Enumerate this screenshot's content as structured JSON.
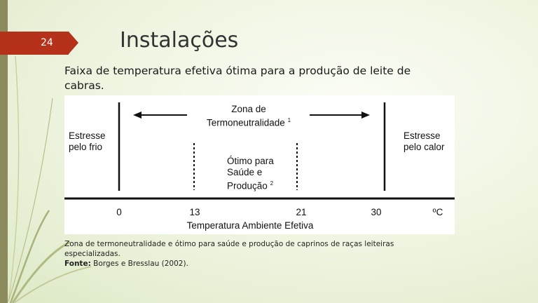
{
  "slide": {
    "number": "24",
    "title": "Instalações",
    "subtitle": "Faixa de temperatura efetiva ótima para a produção de leite de cabras."
  },
  "diagram": {
    "zone_label": "Zona de Termoneutralidade",
    "zone_sup": "1",
    "optimal_label_1": "Ótimo para",
    "optimal_label_2": "Saúde e",
    "optimal_label_3": "Produção",
    "optimal_sup": "2",
    "cold_label": "Estresse pelo frio",
    "heat_label": "Estresse pelo calor",
    "ticks": [
      "0",
      "13",
      "21",
      "30"
    ],
    "unit": "ºC",
    "axis_label": "Temperatura Ambiente Efetiva"
  },
  "caption": {
    "text": "Zona de termoneutralidade e ótimo para saúde e produção de caprinos de raças leiteiras especializadas.",
    "source_label": "Fonte:",
    "source": "Borges e Bresslau (2002)."
  },
  "colors": {
    "accent": "#b5311a",
    "sidebar": "#8a8a5c"
  }
}
